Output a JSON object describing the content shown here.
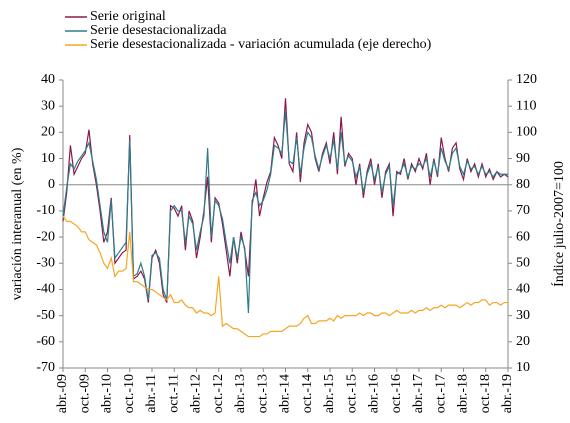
{
  "chart_data": {
    "type": "line",
    "y_label": "variación interanual (en %)",
    "y2_label": "Índice julio-2007=100",
    "categories": [
      "abr.-09",
      null,
      null,
      null,
      null,
      null,
      "oct.-09",
      null,
      null,
      null,
      null,
      null,
      "abr.-10",
      null,
      null,
      null,
      null,
      null,
      "oct.-10",
      null,
      null,
      null,
      null,
      null,
      "abr.-11",
      null,
      null,
      null,
      null,
      null,
      "oct.-11",
      null,
      null,
      null,
      null,
      null,
      "abr.-12",
      null,
      null,
      null,
      null,
      null,
      "oct.-12",
      null,
      null,
      null,
      null,
      null,
      "abr.-13",
      null,
      null,
      null,
      null,
      null,
      "oct.-13",
      null,
      null,
      null,
      null,
      null,
      "abr.-14",
      null,
      null,
      null,
      null,
      null,
      "oct.-14",
      null,
      null,
      null,
      null,
      null,
      "abr.-15",
      null,
      null,
      null,
      null,
      null,
      "oct.-15",
      null,
      null,
      null,
      null,
      null,
      "abr.-16",
      null,
      null,
      null,
      null,
      null,
      "oct.-16",
      null,
      null,
      null,
      null,
      null,
      "abr.-17",
      null,
      null,
      null,
      null,
      null,
      "oct.-17",
      null,
      null,
      null,
      null,
      null,
      "abr.-18",
      null,
      null,
      null,
      null,
      null,
      "oct.-18",
      null,
      null,
      null,
      null,
      null,
      "abr.-19"
    ],
    "series": [
      {
        "name": "Serie original",
        "color": "#8b1a4a",
        "values": [
          -14,
          -3,
          15,
          4,
          7,
          10,
          12,
          21,
          8,
          0,
          -10,
          -22,
          -18,
          -5,
          -30,
          -28,
          -26,
          -25,
          19,
          -36,
          -35,
          -33,
          -36,
          -45,
          -28,
          -25,
          -30,
          -42,
          -45,
          -8,
          -9,
          -12,
          -8,
          -25,
          -10,
          -14,
          -28,
          -20,
          -10,
          3,
          -22,
          -5,
          -7,
          -15,
          -25,
          -35,
          -20,
          -30,
          -18,
          -25,
          -35,
          -8,
          2,
          -12,
          -5,
          1,
          5,
          18,
          15,
          10,
          33,
          8,
          5,
          20,
          1,
          16,
          23,
          20,
          10,
          5,
          12,
          16,
          8,
          20,
          4,
          26,
          7,
          12,
          10,
          0,
          8,
          -5,
          5,
          10,
          0,
          8,
          -5,
          5,
          8,
          -12,
          5,
          4,
          10,
          2,
          8,
          5,
          10,
          6,
          12,
          0,
          10,
          3,
          18,
          10,
          5,
          14,
          16,
          6,
          2,
          10,
          5,
          8,
          3,
          8,
          3,
          6,
          2,
          5,
          3,
          4,
          3
        ]
      },
      {
        "name": "Serie desestacionalizada",
        "color": "#2e7d8c",
        "values": [
          -12,
          -1,
          8,
          6,
          9,
          11,
          13,
          16,
          9,
          2,
          -8,
          -18,
          -22,
          -6,
          -28,
          -26,
          -24,
          -22,
          17,
          -35,
          -34,
          -30,
          -35,
          -44,
          -27,
          -26,
          -28,
          -40,
          -44,
          -10,
          -8,
          -10,
          -10,
          -22,
          -12,
          -15,
          -25,
          -18,
          -12,
          14,
          -20,
          -6,
          -8,
          -13,
          -22,
          -30,
          -20,
          -28,
          -20,
          -24,
          -49,
          -6,
          -3,
          -8,
          -6,
          -2,
          4,
          15,
          14,
          12,
          28,
          9,
          8,
          18,
          4,
          14,
          20,
          18,
          11,
          6,
          11,
          15,
          10,
          17,
          6,
          20,
          8,
          11,
          9,
          3,
          7,
          -3,
          4,
          8,
          2,
          7,
          -3,
          4,
          7,
          -8,
          4,
          5,
          8,
          3,
          7,
          6,
          8,
          7,
          10,
          3,
          9,
          4,
          14,
          9,
          6,
          12,
          14,
          7,
          4,
          9,
          6,
          7,
          4,
          7,
          4,
          5,
          3,
          5,
          4,
          4,
          4
        ]
      },
      {
        "name": "Serie desestacionalizada - variación acumulada (eje derecho)",
        "color": "#f5a623",
        "axis": "y2",
        "values": [
          68,
          66,
          66,
          65,
          64,
          62,
          62,
          59,
          58,
          57,
          54,
          50,
          48,
          52,
          45,
          47,
          47,
          48,
          62,
          43,
          43,
          42,
          41,
          40,
          40,
          39,
          38,
          37,
          36,
          38,
          35,
          35,
          36,
          34,
          33,
          33,
          31,
          32,
          31,
          31,
          30,
          31,
          45,
          26,
          27,
          26,
          25,
          25,
          24,
          23,
          22,
          22,
          22,
          22,
          23,
          23,
          24,
          24,
          24,
          24,
          25,
          26,
          26,
          26,
          27,
          29,
          30,
          27,
          27,
          28,
          28,
          28,
          29,
          28,
          30,
          29,
          30,
          30,
          30,
          30,
          31,
          30,
          31,
          31,
          30,
          30,
          31,
          31,
          30,
          31,
          32,
          31,
          31,
          31,
          32,
          31,
          32,
          32,
          33,
          32,
          33,
          33,
          34,
          33,
          34,
          34,
          34,
          33,
          34,
          35,
          34,
          35,
          35,
          36,
          36,
          34,
          35,
          35,
          34,
          35,
          35
        ]
      }
    ],
    "ylim": [
      -70,
      40
    ],
    "yticks": [
      -70,
      -60,
      -50,
      -40,
      -30,
      -20,
      -10,
      0,
      10,
      20,
      30,
      40
    ],
    "y2lim": [
      10,
      120
    ],
    "y2ticks": [
      10,
      20,
      30,
      40,
      50,
      60,
      70,
      80,
      90,
      100,
      110,
      120
    ],
    "legend": "top-left"
  }
}
